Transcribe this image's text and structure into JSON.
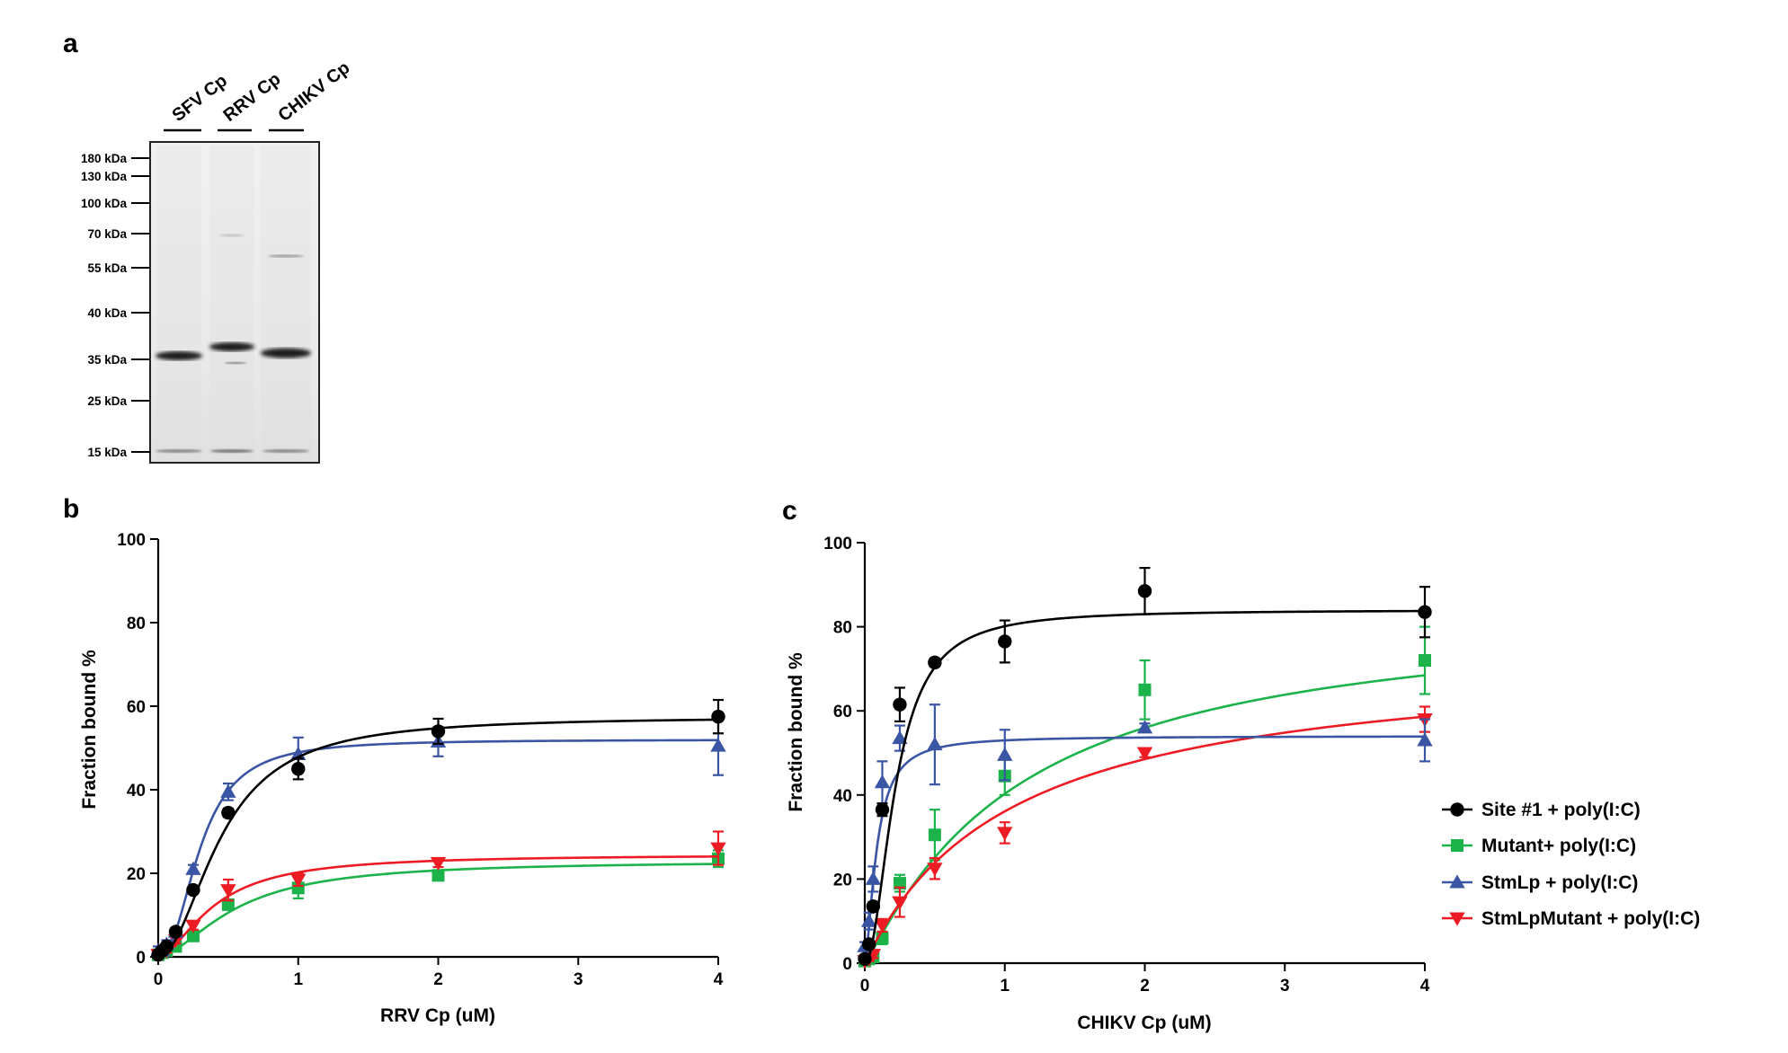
{
  "colors": {
    "site1": "#000000",
    "mutant": "#1cb34a",
    "stmlp": "#3a55a4",
    "stmlpmutant": "#ed1c24"
  },
  "panels": {
    "a": "a",
    "b": "b",
    "c": "c"
  },
  "gel": {
    "lanes": [
      "SFV Cp",
      "RRV Cp",
      "CHIKV Cp"
    ],
    "markers": [
      {
        "label": "180 kDa",
        "kda": 180
      },
      {
        "label": "130 kDa",
        "kda": 130
      },
      {
        "label": "100 kDa",
        "kda": 100
      },
      {
        "label": "70 kDa",
        "kda": 70
      },
      {
        "label": "55 kDa",
        "kda": 55
      },
      {
        "label": "40 kDa",
        "kda": 40
      },
      {
        "label": "35 kDa",
        "kda": 35
      },
      {
        "label": "25 kDa",
        "kda": 25
      },
      {
        "label": "15 kDa",
        "kda": 15
      }
    ]
  },
  "legend": [
    {
      "key": "site1",
      "label": "Site #1 + poly(I:C)",
      "marker": "circle"
    },
    {
      "key": "mutant",
      "label": "Mutant+ poly(I:C)",
      "marker": "square"
    },
    {
      "key": "stmlp",
      "label": "StmLp + poly(I:C)",
      "marker": "triangle-up"
    },
    {
      "key": "stmlpmutant",
      "label": "StmLpMutant + poly(I:C)",
      "marker": "triangle-down"
    }
  ],
  "chart_data": [
    {
      "id": "b",
      "type": "scatter",
      "title": "",
      "xlabel": "RRV Cp (uM)",
      "ylabel": "Fraction bound  %",
      "xlim": [
        0,
        4
      ],
      "ylim": [
        0,
        100
      ],
      "xticks": [
        0,
        1,
        2,
        3,
        4
      ],
      "yticks": [
        0,
        20,
        40,
        60,
        80,
        100
      ],
      "grid": false,
      "series": [
        {
          "key": "site1",
          "name": "Site #1 + poly(I:C)",
          "x": [
            0,
            0.03,
            0.06,
            0.125,
            0.25,
            0.5,
            1,
            2,
            4
          ],
          "y": [
            0.5,
            1.5,
            2.5,
            6,
            16,
            34.5,
            45,
            54,
            57.5
          ],
          "err": [
            0.5,
            0.5,
            0.8,
            0.8,
            0.8,
            1,
            2.5,
            3,
            4
          ],
          "fit": {
            "bmax": 57.5,
            "k": 0.45,
            "h": 2.0
          }
        },
        {
          "key": "mutant",
          "name": "Mutant+ poly(I:C)",
          "x": [
            0,
            0.03,
            0.06,
            0.125,
            0.25,
            0.5,
            1,
            2,
            4
          ],
          "y": [
            0.5,
            1,
            1.5,
            2.5,
            5,
            12.5,
            16.5,
            19.5,
            23.5
          ],
          "err": [
            0.5,
            0.5,
            0.5,
            0.5,
            0.8,
            1,
            2.5,
            1,
            2
          ],
          "fit": {
            "bmax": 23,
            "k": 0.55,
            "h": 1.7
          }
        },
        {
          "key": "stmlp",
          "name": "StmLp + poly(I:C)",
          "x": [
            0,
            0.03,
            0.06,
            0.125,
            0.25,
            0.5,
            1,
            2,
            4
          ],
          "y": [
            1.5,
            1.5,
            3,
            6,
            21,
            39.5,
            48.5,
            51.5,
            50.5
          ],
          "err": [
            1,
            0.8,
            1,
            1,
            1,
            2,
            4,
            3.5,
            7
          ],
          "fit": {
            "bmax": 52,
            "k": 0.3,
            "h": 2.3
          }
        },
        {
          "key": "stmlpmutant",
          "name": "StmLpMutant + poly(I:C)",
          "x": [
            0,
            0.03,
            0.06,
            0.125,
            0.25,
            0.5,
            1,
            2,
            4
          ],
          "y": [
            0.5,
            1,
            1.5,
            4,
            7.5,
            16,
            18.5,
            22.5,
            26
          ],
          "err": [
            0.5,
            0.5,
            0.5,
            0.8,
            1,
            2.5,
            1.5,
            1,
            4
          ],
          "fit": {
            "bmax": 24.5,
            "k": 0.4,
            "h": 1.7
          }
        }
      ]
    },
    {
      "id": "c",
      "type": "scatter",
      "title": "",
      "xlabel": "CHIKV Cp (uM)",
      "ylabel": "Fraction bound  %",
      "xlim": [
        0,
        4
      ],
      "ylim": [
        0,
        100
      ],
      "xticks": [
        0,
        1,
        2,
        3,
        4
      ],
      "yticks": [
        0,
        20,
        40,
        60,
        80,
        100
      ],
      "grid": false,
      "series": [
        {
          "key": "site1",
          "name": "Site #1 + poly(I:C)",
          "x": [
            0,
            0.03,
            0.06,
            0.125,
            0.25,
            0.5,
            1,
            2,
            4
          ],
          "y": [
            1,
            4.5,
            13.5,
            36.5,
            61.5,
            71.5,
            76.5,
            88.5,
            83.5
          ],
          "err": [
            0.5,
            0.8,
            1,
            1.5,
            4,
            1,
            5,
            5.5,
            6
          ],
          "fit": {
            "bmax": 84,
            "k": 0.22,
            "h": 2.0
          }
        },
        {
          "key": "mutant",
          "name": "Mutant+ poly(I:C)",
          "x": [
            0,
            0.03,
            0.06,
            0.125,
            0.25,
            0.5,
            1,
            2,
            4
          ],
          "y": [
            0.5,
            1,
            1.5,
            6,
            19,
            30.5,
            44.5,
            65,
            72
          ],
          "err": [
            0.5,
            0.5,
            0.5,
            1.5,
            2,
            6,
            4.5,
            7,
            8
          ],
          "fit": {
            "bmax": 85,
            "k": 1.1,
            "h": 1.1
          }
        },
        {
          "key": "stmlp",
          "name": "StmLp + poly(I:C)",
          "x": [
            0,
            0.03,
            0.06,
            0.125,
            0.25,
            0.5,
            1,
            2,
            4
          ],
          "y": [
            4,
            10,
            20,
            43,
            53.5,
            52,
            49.5,
            56,
            53
          ],
          "err": [
            1,
            2,
            3,
            5,
            3,
            9.5,
            6,
            1,
            5
          ],
          "fit": {
            "bmax": 54,
            "k": 0.085,
            "h": 1.6
          }
        },
        {
          "key": "stmlpmutant",
          "name": "StmLpMutant + poly(I:C)",
          "x": [
            0,
            0.03,
            0.06,
            0.125,
            0.25,
            0.5,
            1,
            2,
            4
          ],
          "y": [
            0.5,
            1,
            2,
            9,
            14.5,
            22.5,
            31,
            50,
            58
          ],
          "err": [
            0.5,
            0.5,
            0.8,
            1.5,
            3.5,
            2.5,
            2.5,
            1,
            3
          ],
          "fit": {
            "bmax": 74,
            "k": 1.05,
            "h": 1.0
          }
        }
      ]
    }
  ]
}
